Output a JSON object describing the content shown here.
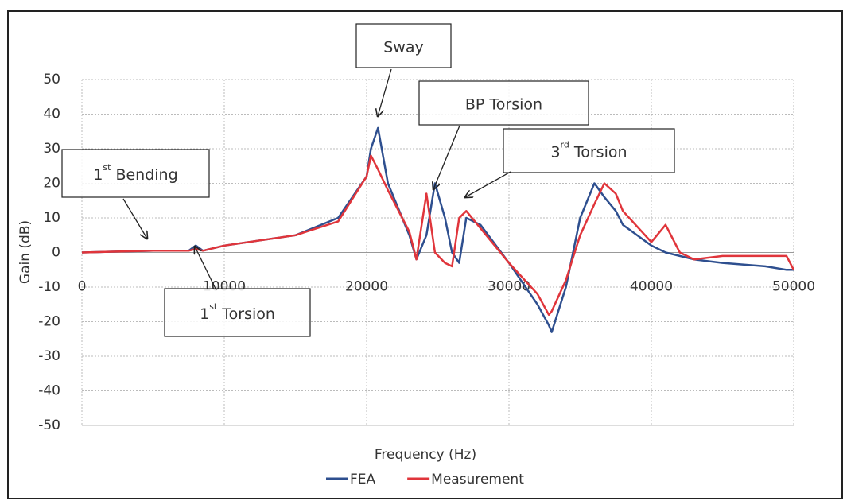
{
  "chart_data": {
    "type": "line",
    "x_label": "Frequency (Hz)",
    "y_label": "Gain (dB)",
    "x": [
      0,
      5000,
      7500,
      8000,
      8500,
      10000,
      15000,
      18000,
      20000,
      20300,
      20800,
      21500,
      23000,
      23500,
      24200,
      24800,
      25500,
      26000,
      26500,
      27000,
      28000,
      30000,
      32000,
      32800,
      33000,
      34000,
      35000,
      36000,
      36700,
      37500,
      38000,
      40000,
      41000,
      42000,
      43000,
      45000,
      48000,
      49500,
      50000
    ],
    "series": [
      {
        "name": "FEA",
        "color": "#2e4f8f",
        "values": [
          0,
          0.5,
          0.5,
          2,
          0.5,
          2,
          5,
          10,
          22,
          30,
          36,
          20,
          5,
          -2,
          5,
          20,
          10,
          0,
          -3,
          10,
          8,
          -3,
          -15,
          -21,
          -23,
          -10,
          10,
          20,
          16,
          12,
          8,
          2,
          0,
          -1,
          -2,
          -3,
          -4,
          -5,
          -5
        ]
      },
      {
        "name": "Measurement",
        "color": "#e0353b",
        "values": [
          0,
          0.5,
          0.5,
          1,
          0.5,
          2,
          5,
          9,
          22,
          28,
          24,
          18,
          6,
          -2,
          17,
          0,
          -3,
          -4,
          10,
          12,
          7,
          -3,
          -12,
          -18,
          -17,
          -8,
          5,
          14,
          20,
          17,
          12,
          3,
          8,
          0,
          -2,
          -1,
          -1,
          -1,
          -5
        ]
      }
    ],
    "xlim": [
      0,
      50000
    ],
    "xticks": [
      0,
      10000,
      20000,
      30000,
      40000,
      50000
    ],
    "ylim": [
      -50,
      50
    ],
    "yticks": [
      -50,
      -40,
      -30,
      -20,
      -10,
      0,
      10,
      20,
      30,
      40,
      50
    ],
    "grid": true,
    "annotations": [
      {
        "number": "1",
        "sup": "st",
        "text": "Bending"
      },
      {
        "text": "Sway"
      },
      {
        "text": "BP Torsion"
      },
      {
        "number": "3",
        "sup": "rd",
        "text": "Torsion"
      },
      {
        "number": "1",
        "sup": "st",
        "text": "Torsion"
      }
    ]
  }
}
